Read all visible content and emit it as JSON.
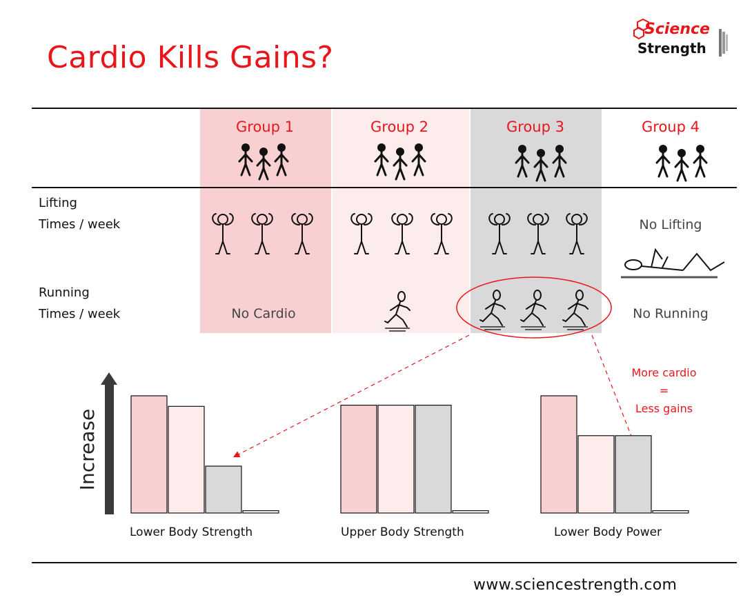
{
  "title": "Cardio Kills Gains?",
  "logo": {
    "line1": "Science",
    "line2": "Strength"
  },
  "groups": [
    "Group 1",
    "Group 2",
    "Group 3",
    "Group 4"
  ],
  "rows": {
    "lifting": {
      "line1": "Lifting",
      "line2": "Times / week"
    },
    "running": {
      "line1": "Running",
      "line2": "Times / week"
    }
  },
  "cells": {
    "g1_running": "No Cardio",
    "g4_lifting": "No Lifting",
    "g4_running": "No Running"
  },
  "lifting_per_week": [
    3,
    3,
    3,
    0
  ],
  "running_per_week": [
    0,
    1,
    3,
    0
  ],
  "annotation": {
    "line1": "More cardio",
    "line2": "=",
    "line3": "Less gains"
  },
  "footer_url": "www.sciencestrength.com",
  "colors": {
    "group1": "#f9d0d1",
    "group2": "#fcecec",
    "group3": "#d9d9d9",
    "group4": "#ffffff",
    "accent": "#e8161b"
  },
  "chart_data": {
    "type": "bar",
    "ylabel": "Increase",
    "categories": [
      "Lower Body Strength",
      "Upper Body Strength",
      "Lower Body Power"
    ],
    "series": [
      {
        "name": "Group 1",
        "values": [
          100,
          92,
          100
        ]
      },
      {
        "name": "Group 2",
        "values": [
          91,
          92,
          66
        ]
      },
      {
        "name": "Group 3",
        "values": [
          40,
          92,
          66
        ]
      },
      {
        "name": "Group 4",
        "values": [
          2,
          2,
          2
        ]
      }
    ],
    "ylim": [
      0,
      100
    ],
    "grid": false,
    "legend": "none"
  }
}
